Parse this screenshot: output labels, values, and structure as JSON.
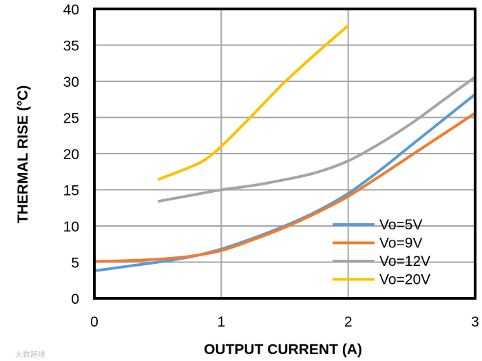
{
  "watermark": "大数跨境",
  "colors": {
    "Vo=5V": "#5b9bd5",
    "Vo=9V": "#ed7d31",
    "Vo=12V": "#a5a5a5",
    "Vo=20V": "#ffc000",
    "grid": "#a6a6a6",
    "frame": "#000000"
  },
  "chart_data": {
    "type": "line",
    "xlabel": "OUTPUT  CURRENT  (A)",
    "ylabel": "THERMAL   RISE (°C)",
    "xlim": [
      0,
      3
    ],
    "ylim": [
      0,
      40
    ],
    "xticks": [
      0,
      1,
      2,
      3
    ],
    "yticks": [
      0,
      5,
      10,
      15,
      20,
      25,
      30,
      35,
      40
    ],
    "grid": true,
    "legend_position": "bottom-right",
    "series": [
      {
        "name": "Vo=5V",
        "x": [
          0,
          0.25,
          0.5,
          0.75,
          1.0,
          1.25,
          1.5,
          1.75,
          2.0,
          2.25,
          2.5,
          2.75,
          3.0
        ],
        "y": [
          3.8,
          4.4,
          5.0,
          5.7,
          6.8,
          8.3,
          10.0,
          12.0,
          14.5,
          17.7,
          21.2,
          24.7,
          28.2
        ]
      },
      {
        "name": "Vo=9V",
        "x": [
          0,
          0.25,
          0.5,
          0.75,
          1.0,
          1.25,
          1.5,
          1.75,
          2.0,
          2.25,
          2.5,
          2.75,
          3.0
        ],
        "y": [
          5.1,
          5.2,
          5.4,
          5.8,
          6.6,
          8.1,
          9.8,
          11.8,
          14.1,
          16.9,
          19.8,
          22.7,
          25.6
        ]
      },
      {
        "name": "Vo=12V",
        "x": [
          0.5,
          0.75,
          1.0,
          1.25,
          1.5,
          1.75,
          2.0,
          2.25,
          2.5,
          2.75,
          3.0
        ],
        "y": [
          13.4,
          14.2,
          15.0,
          15.6,
          16.4,
          17.4,
          19.0,
          21.4,
          24.2,
          27.4,
          30.6
        ]
      },
      {
        "name": "Vo=20V",
        "x": [
          0.5,
          0.75,
          0.875,
          1.0,
          1.25,
          1.5,
          1.75,
          2.0
        ],
        "y": [
          16.4,
          18.1,
          19.2,
          21.0,
          25.4,
          29.9,
          33.9,
          37.7
        ]
      }
    ]
  }
}
